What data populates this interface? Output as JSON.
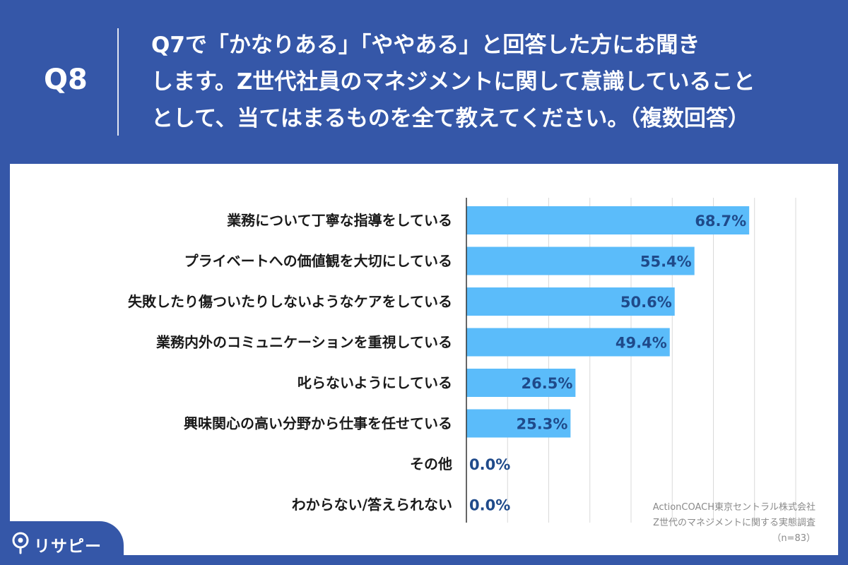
{
  "header": {
    "qnum": "Q8",
    "question": "Q7で「かなりある」「ややある」と回答した方にお聞き\nします。Z世代社員のマネジメントに関して意識していること\nとして、当てはまるものを全て教えてください。（複数回答）"
  },
  "colors": {
    "background": "#3557a8",
    "bar": "#5bbcfa",
    "value_text": "#1f4a8a",
    "grid": "#d9d9d9"
  },
  "source": {
    "line1": "ActionCOACH東京セントラル株式会社",
    "line2": "Z世代のマネジメントに関する実態調査",
    "line3": "（n=83）"
  },
  "logo": {
    "icon": "map-pin-icon",
    "text": "リサピー"
  },
  "chart_data": {
    "type": "bar",
    "orientation": "horizontal",
    "categories": [
      "業務について丁寧な指導をしている",
      "プライベートへの価値観を大切にしている",
      "失敗したり傷ついたりしないようなケアをしている",
      "業務内外のコミュニケーションを重視している",
      "叱らないようにしている",
      "興味関心の高い分野から仕事を任せている",
      "その他",
      "わからない/答えられない"
    ],
    "values": [
      68.7,
      55.4,
      50.6,
      49.4,
      26.5,
      25.3,
      0.0,
      0.0
    ],
    "value_labels": [
      "68.7%",
      "55.4%",
      "50.6%",
      "49.4%",
      "26.5%",
      "25.3%",
      "0.0%",
      "0.0%"
    ],
    "xlim": [
      0,
      80
    ],
    "grid": true,
    "gridlines_at": [
      0,
      10,
      20,
      30,
      40,
      50,
      60,
      70,
      80
    ]
  }
}
